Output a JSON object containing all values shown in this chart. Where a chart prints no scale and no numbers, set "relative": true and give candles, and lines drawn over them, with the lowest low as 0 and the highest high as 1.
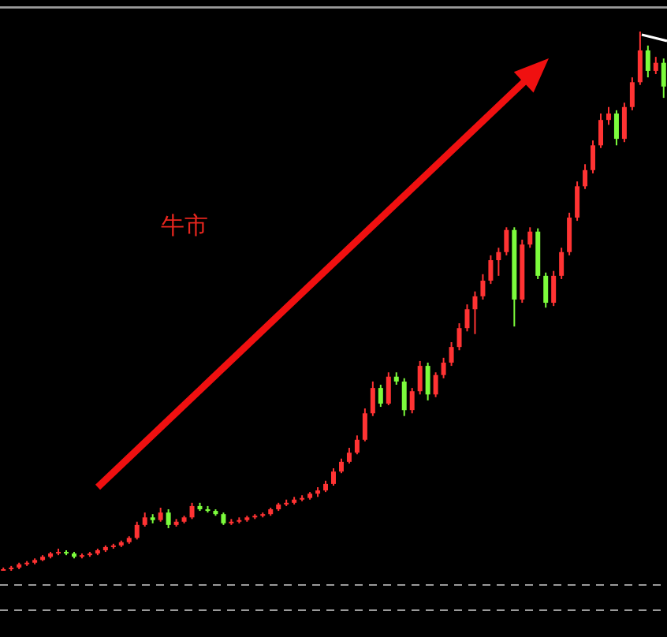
{
  "chart_data": {
    "type": "candlestick",
    "relative": true,
    "annotations": [
      "牛市"
    ],
    "categories": [
      null,
      null,
      null,
      null,
      null,
      null,
      null,
      null,
      null,
      null,
      null,
      null,
      null,
      null,
      null,
      null,
      null,
      null,
      null,
      null,
      null,
      null,
      null,
      null,
      null,
      null,
      null,
      null,
      null,
      null,
      null,
      null,
      null,
      null,
      null,
      null,
      null,
      null,
      null,
      null,
      null,
      null,
      null,
      null,
      null,
      null,
      null,
      null,
      null,
      null,
      null,
      null,
      null,
      null,
      null,
      null,
      null,
      null,
      null,
      null,
      null,
      null,
      null,
      null,
      null,
      null,
      null,
      null,
      null,
      null,
      null,
      null,
      null,
      null,
      null,
      null,
      null,
      null,
      null,
      null,
      null,
      null,
      null,
      null,
      null
    ],
    "ohlc": [
      [
        0,
        0.006,
        0,
        0.003
      ],
      [
        0.003,
        0.009,
        0,
        0.006
      ],
      [
        0.006,
        0.015,
        0.003,
        0.012
      ],
      [
        0.012,
        0.018,
        0.009,
        0.015
      ],
      [
        0.015,
        0.023,
        0.012,
        0.02
      ],
      [
        0.02,
        0.029,
        0.018,
        0.026
      ],
      [
        0.026,
        0.035,
        0.023,
        0.032
      ],
      [
        0.032,
        0.041,
        0.029,
        0.035
      ],
      [
        0.035,
        0.038,
        0.029,
        0.032
      ],
      [
        0.032,
        0.035,
        0.023,
        0.026
      ],
      [
        0.026,
        0.032,
        0.023,
        0.029
      ],
      [
        0.029,
        0.035,
        0.026,
        0.032
      ],
      [
        0.032,
        0.041,
        0.029,
        0.038
      ],
      [
        0.038,
        0.047,
        0.035,
        0.044
      ],
      [
        0.044,
        0.05,
        0.041,
        0.047
      ],
      [
        0.047,
        0.056,
        0.044,
        0.053
      ],
      [
        0.053,
        0.064,
        0.05,
        0.061
      ],
      [
        0.061,
        0.091,
        0.058,
        0.085
      ],
      [
        0.085,
        0.108,
        0.082,
        0.099
      ],
      [
        0.099,
        0.105,
        0.088,
        0.094
      ],
      [
        0.094,
        0.117,
        0.091,
        0.108
      ],
      [
        0.108,
        0.114,
        0.079,
        0.085
      ],
      [
        0.085,
        0.096,
        0.082,
        0.091
      ],
      [
        0.091,
        0.102,
        0.088,
        0.099
      ],
      [
        0.099,
        0.126,
        0.096,
        0.12
      ],
      [
        0.12,
        0.126,
        0.111,
        0.114
      ],
      [
        0.114,
        0.12,
        0.108,
        0.111
      ],
      [
        0.111,
        0.114,
        0.102,
        0.105
      ],
      [
        0.105,
        0.108,
        0.085,
        0.088
      ],
      [
        0.088,
        0.096,
        0.085,
        0.091
      ],
      [
        0.091,
        0.099,
        0.088,
        0.094
      ],
      [
        0.094,
        0.102,
        0.091,
        0.099
      ],
      [
        0.099,
        0.105,
        0.096,
        0.102
      ],
      [
        0.102,
        0.108,
        0.099,
        0.105
      ],
      [
        0.105,
        0.117,
        0.102,
        0.114
      ],
      [
        0.114,
        0.126,
        0.111,
        0.123
      ],
      [
        0.123,
        0.132,
        0.12,
        0.126
      ],
      [
        0.126,
        0.137,
        0.123,
        0.132
      ],
      [
        0.132,
        0.14,
        0.129,
        0.135
      ],
      [
        0.135,
        0.146,
        0.132,
        0.143
      ],
      [
        0.143,
        0.155,
        0.137,
        0.149
      ],
      [
        0.149,
        0.167,
        0.146,
        0.161
      ],
      [
        0.161,
        0.19,
        0.158,
        0.184
      ],
      [
        0.184,
        0.208,
        0.181,
        0.202
      ],
      [
        0.202,
        0.228,
        0.199,
        0.219
      ],
      [
        0.219,
        0.251,
        0.216,
        0.243
      ],
      [
        0.243,
        0.301,
        0.24,
        0.292
      ],
      [
        0.292,
        0.351,
        0.287,
        0.339
      ],
      [
        0.339,
        0.345,
        0.304,
        0.31
      ],
      [
        0.31,
        0.368,
        0.307,
        0.36
      ],
      [
        0.36,
        0.368,
        0.345,
        0.351
      ],
      [
        0.351,
        0.357,
        0.287,
        0.298
      ],
      [
        0.298,
        0.339,
        0.292,
        0.333
      ],
      [
        0.333,
        0.389,
        0.327,
        0.38
      ],
      [
        0.38,
        0.386,
        0.316,
        0.327
      ],
      [
        0.327,
        0.368,
        0.322,
        0.363
      ],
      [
        0.363,
        0.395,
        0.357,
        0.386
      ],
      [
        0.386,
        0.424,
        0.38,
        0.415
      ],
      [
        0.415,
        0.459,
        0.409,
        0.45
      ],
      [
        0.45,
        0.494,
        0.444,
        0.485
      ],
      [
        0.485,
        0.518,
        0.439,
        0.509
      ],
      [
        0.509,
        0.55,
        0.503,
        0.538
      ],
      [
        0.538,
        0.585,
        0.532,
        0.576
      ],
      [
        0.576,
        0.599,
        0.547,
        0.591
      ],
      [
        0.591,
        0.637,
        0.585,
        0.632
      ],
      [
        0.632,
        0.637,
        0.453,
        0.503
      ],
      [
        0.503,
        0.614,
        0.497,
        0.605
      ],
      [
        0.605,
        0.637,
        0.599,
        0.629
      ],
      [
        0.629,
        0.635,
        0.541,
        0.547
      ],
      [
        0.547,
        0.553,
        0.488,
        0.497
      ],
      [
        0.497,
        0.556,
        0.491,
        0.547
      ],
      [
        0.547,
        0.599,
        0.541,
        0.591
      ],
      [
        0.591,
        0.664,
        0.585,
        0.655
      ],
      [
        0.655,
        0.722,
        0.649,
        0.713
      ],
      [
        0.713,
        0.754,
        0.708,
        0.743
      ],
      [
        0.743,
        0.798,
        0.737,
        0.789
      ],
      [
        0.789,
        0.848,
        0.784,
        0.836
      ],
      [
        0.836,
        0.86,
        0.827,
        0.848
      ],
      [
        0.848,
        0.854,
        0.789,
        0.801
      ],
      [
        0.801,
        0.868,
        0.795,
        0.86
      ],
      [
        0.86,
        0.915,
        0.854,
        0.906
      ],
      [
        0.906,
        1,
        0.901,
        0.965
      ],
      [
        0.965,
        0.974,
        0.915,
        0.927
      ],
      [
        0.927,
        0.953,
        0.921,
        0.942
      ],
      [
        0.942,
        0.95,
        0.877,
        0.898
      ]
    ],
    "colors": [
      "#ff3333",
      "#ff3333",
      "#ff3333",
      "#ff3333",
      "#ff3333",
      "#ff3333",
      "#ff3333",
      "#ff3333",
      "#7cfc3c",
      "#7cfc3c",
      "#ff3333",
      "#ff3333",
      "#ff3333",
      "#ff3333",
      "#ff3333",
      "#ff3333",
      "#ff3333",
      "#ff3333",
      "#ff3333",
      "#7cfc3c",
      "#ff3333",
      "#7cfc3c",
      "#ff3333",
      "#ff3333",
      "#ff3333",
      "#7cfc3c",
      "#7cfc3c",
      "#7cfc3c",
      "#7cfc3c",
      "#ff3333",
      "#ff3333",
      "#ff3333",
      "#ff3333",
      "#ff3333",
      "#ff3333",
      "#ff3333",
      "#ff3333",
      "#ff3333",
      "#ff3333",
      "#ff3333",
      "#ff3333",
      "#ff3333",
      "#ff3333",
      "#ff3333",
      "#ff3333",
      "#ff3333",
      "#ff3333",
      "#ff3333",
      "#7cfc3c",
      "#ff3333",
      "#7cfc3c",
      "#7cfc3c",
      "#ff3333",
      "#ff3333",
      "#7cfc3c",
      "#ff3333",
      "#ff3333",
      "#ff3333",
      "#ff3333",
      "#ff3333",
      "#ff3333",
      "#ff3333",
      "#ff3333",
      "#ff3333",
      "#ff3333",
      "#7cfc3c",
      "#ff3333",
      "#ff3333",
      "#7cfc3c",
      "#7cfc3c",
      "#ff3333",
      "#ff3333",
      "#ff3333",
      "#ff3333",
      "#ff3333",
      "#ff3333",
      "#ff3333",
      "#ff3333",
      "#7cfc3c",
      "#ff3333",
      "#ff3333",
      "#ff3333",
      "#7cfc3c",
      "#ff3333",
      "#7cfc3c"
    ]
  }
}
